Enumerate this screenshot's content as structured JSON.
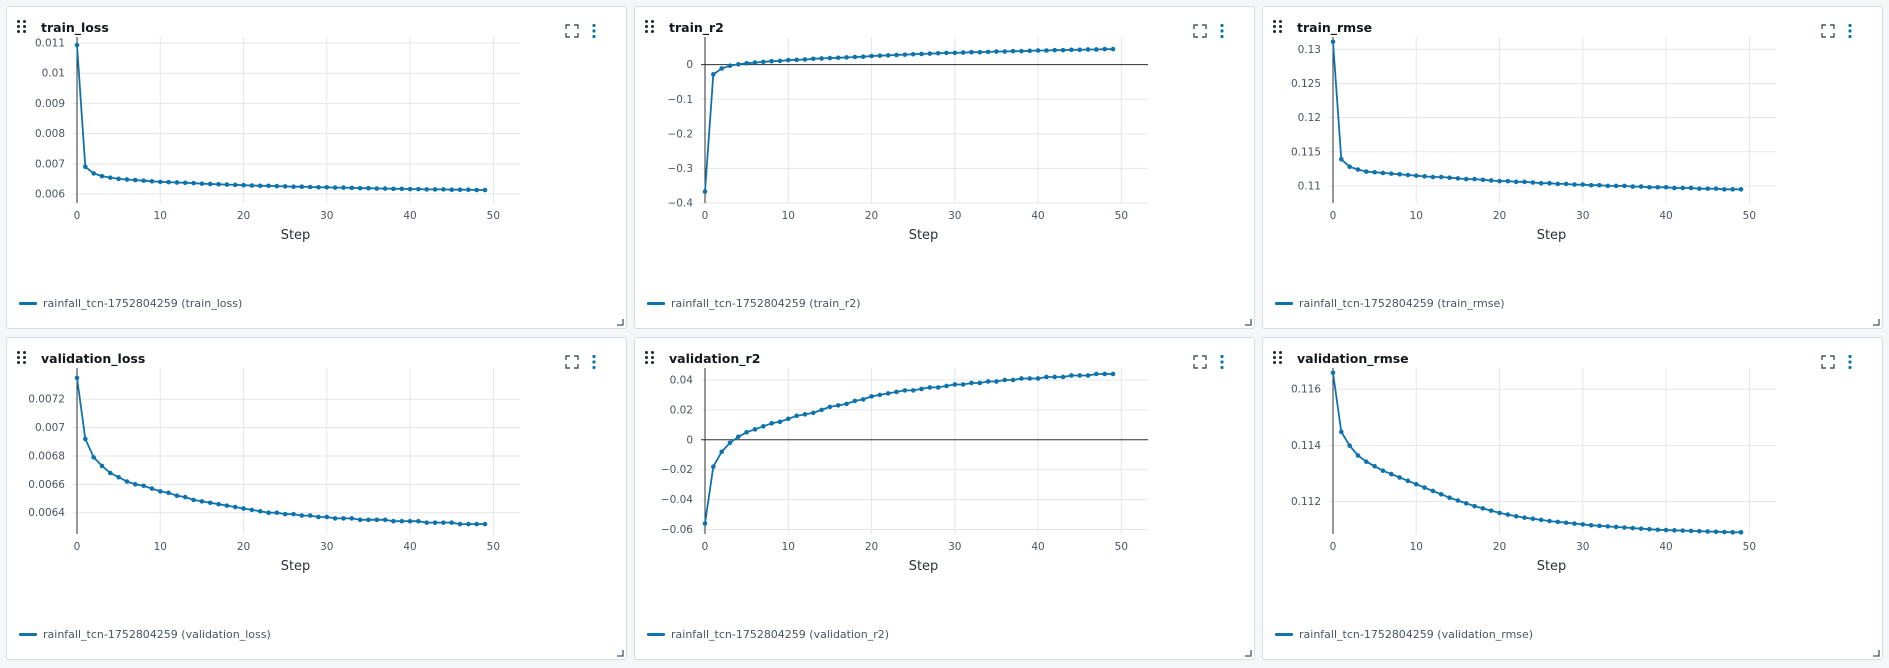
{
  "colors": {
    "series": "#0e73ad",
    "grid": "#e3e6ea",
    "zero_line": "#2b2f33",
    "text": "#4a5560"
  },
  "icons": {
    "drag": "drag-handle-icon",
    "expand": "fullscreen-icon",
    "menu": "kebab-menu-icon",
    "resize": "resize-handle-icon"
  },
  "chart_data": [
    {
      "type": "line",
      "title": "train_loss",
      "xlabel": "Step",
      "xlim": [
        0,
        52
      ],
      "ylim": [
        0.0057,
        0.0112
      ],
      "xticks": [
        0,
        10,
        20,
        30,
        40,
        50
      ],
      "xtick_labels": [
        "0",
        "10",
        "20",
        "30",
        "40",
        "50"
      ],
      "yticks": [
        0.006,
        0.007,
        0.008,
        0.009,
        0.01,
        0.011
      ],
      "ytick_labels": [
        "0.006",
        "0.007",
        "0.008",
        "0.009",
        "0.01",
        "0.011"
      ],
      "zero_line": false,
      "series": [
        {
          "name": "rainfall_tcn-1752804259 (train_loss)",
          "y": [
            0.01093,
            0.0069,
            0.00668,
            0.00659,
            0.00654,
            0.0065,
            0.00648,
            0.00646,
            0.00644,
            0.00642,
            0.0064,
            0.00639,
            0.00638,
            0.00637,
            0.00636,
            0.00634,
            0.00633,
            0.00632,
            0.00631,
            0.0063,
            0.00629,
            0.00628,
            0.00627,
            0.00627,
            0.00626,
            0.00625,
            0.00624,
            0.00624,
            0.00623,
            0.00622,
            0.00622,
            0.00621,
            0.00621,
            0.0062,
            0.00619,
            0.00619,
            0.00618,
            0.00618,
            0.00617,
            0.00617,
            0.00616,
            0.00616,
            0.00615,
            0.00615,
            0.00615,
            0.00614,
            0.00614,
            0.00614,
            0.00613,
            0.00613
          ]
        }
      ]
    },
    {
      "type": "line",
      "title": "train_r2",
      "xlabel": "Step",
      "xlim": [
        0,
        52
      ],
      "ylim": [
        -0.4,
        0.08
      ],
      "xticks": [
        0,
        10,
        20,
        30,
        40,
        50
      ],
      "xtick_labels": [
        "0",
        "10",
        "20",
        "30",
        "40",
        "50"
      ],
      "yticks": [
        -0.4,
        -0.3,
        -0.2,
        -0.1,
        0
      ],
      "ytick_labels": [
        "−0.4",
        "−0.3",
        "−0.2",
        "−0.1",
        "0"
      ],
      "zero_line": true,
      "series": [
        {
          "name": "rainfall_tcn-1752804259 (train_r2)",
          "y": [
            -0.367,
            -0.028,
            -0.011,
            -0.003,
            0.001,
            0.004,
            0.006,
            0.008,
            0.01,
            0.011,
            0.013,
            0.014,
            0.015,
            0.017,
            0.018,
            0.019,
            0.02,
            0.021,
            0.022,
            0.023,
            0.025,
            0.026,
            0.027,
            0.028,
            0.029,
            0.03,
            0.031,
            0.032,
            0.033,
            0.034,
            0.034,
            0.035,
            0.036,
            0.036,
            0.037,
            0.038,
            0.038,
            0.039,
            0.039,
            0.04,
            0.041,
            0.041,
            0.042,
            0.042,
            0.043,
            0.043,
            0.044,
            0.044,
            0.045,
            0.045
          ]
        }
      ]
    },
    {
      "type": "line",
      "title": "train_rmse",
      "xlabel": "Step",
      "xlim": [
        0,
        52
      ],
      "ylim": [
        0.1075,
        0.1318
      ],
      "xticks": [
        0,
        10,
        20,
        30,
        40,
        50
      ],
      "xtick_labels": [
        "0",
        "10",
        "20",
        "30",
        "40",
        "50"
      ],
      "yticks": [
        0.11,
        0.115,
        0.12,
        0.125,
        0.13
      ],
      "ytick_labels": [
        "0.11",
        "0.115",
        "0.12",
        "0.125",
        "0.13"
      ],
      "zero_line": false,
      "series": [
        {
          "name": "rainfall_tcn-1752804259 (train_rmse)",
          "y": [
            0.1311,
            0.1139,
            0.1128,
            0.1124,
            0.1121,
            0.112,
            0.1119,
            0.1118,
            0.1117,
            0.1116,
            0.1115,
            0.1114,
            0.1113,
            0.1113,
            0.1112,
            0.1111,
            0.111,
            0.111,
            0.1109,
            0.1108,
            0.1107,
            0.1107,
            0.1106,
            0.1106,
            0.1105,
            0.1104,
            0.1104,
            0.1103,
            0.1103,
            0.1102,
            0.1102,
            0.1101,
            0.1101,
            0.11,
            0.11,
            0.11,
            0.1099,
            0.1099,
            0.1098,
            0.1098,
            0.1098,
            0.1097,
            0.1097,
            0.1097,
            0.1096,
            0.1096,
            0.1096,
            0.1095,
            0.1095,
            0.1095
          ]
        }
      ]
    },
    {
      "type": "line",
      "title": "validation_loss",
      "xlabel": "Step",
      "xlim": [
        0,
        52
      ],
      "ylim": [
        0.00625,
        0.00742
      ],
      "xticks": [
        0,
        10,
        20,
        30,
        40,
        50
      ],
      "xtick_labels": [
        "0",
        "10",
        "20",
        "30",
        "40",
        "50"
      ],
      "yticks": [
        0.0064,
        0.0066,
        0.0068,
        0.007,
        0.0072
      ],
      "ytick_labels": [
        "0.0064",
        "0.0066",
        "0.0068",
        "0.007",
        "0.0072"
      ],
      "zero_line": false,
      "series": [
        {
          "name": "rainfall_tcn-1752804259 (validation_loss)",
          "y": [
            0.00735,
            0.00692,
            0.00679,
            0.00673,
            0.00668,
            0.00665,
            0.00662,
            0.0066,
            0.00659,
            0.00657,
            0.00655,
            0.00654,
            0.00652,
            0.00651,
            0.00649,
            0.00648,
            0.00647,
            0.00646,
            0.00645,
            0.00644,
            0.00643,
            0.00642,
            0.00641,
            0.0064,
            0.0064,
            0.00639,
            0.00639,
            0.00638,
            0.00638,
            0.00637,
            0.00637,
            0.00636,
            0.00636,
            0.00636,
            0.00635,
            0.00635,
            0.00635,
            0.00635,
            0.00634,
            0.00634,
            0.00634,
            0.00634,
            0.00633,
            0.00633,
            0.00633,
            0.00633,
            0.00632,
            0.00632,
            0.00632,
            0.00632
          ]
        }
      ]
    },
    {
      "type": "line",
      "title": "validation_r2",
      "xlabel": "Step",
      "xlim": [
        0,
        52
      ],
      "ylim": [
        -0.063,
        0.048
      ],
      "xticks": [
        0,
        10,
        20,
        30,
        40,
        50
      ],
      "xtick_labels": [
        "0",
        "10",
        "20",
        "30",
        "40",
        "50"
      ],
      "yticks": [
        -0.06,
        -0.04,
        -0.02,
        0,
        0.02,
        0.04
      ],
      "ytick_labels": [
        "−0.06",
        "−0.04",
        "−0.02",
        "0",
        "0.02",
        "0.04"
      ],
      "zero_line": true,
      "series": [
        {
          "name": "rainfall_tcn-1752804259 (validation_r2)",
          "y": [
            -0.056,
            -0.018,
            -0.008,
            -0.002,
            0.002,
            0.005,
            0.007,
            0.009,
            0.011,
            0.012,
            0.014,
            0.016,
            0.017,
            0.018,
            0.02,
            0.022,
            0.023,
            0.024,
            0.026,
            0.027,
            0.029,
            0.03,
            0.031,
            0.032,
            0.033,
            0.033,
            0.034,
            0.035,
            0.035,
            0.036,
            0.037,
            0.037,
            0.038,
            0.038,
            0.039,
            0.039,
            0.04,
            0.04,
            0.041,
            0.041,
            0.041,
            0.042,
            0.042,
            0.042,
            0.043,
            0.043,
            0.043,
            0.044,
            0.044,
            0.044
          ]
        }
      ]
    },
    {
      "type": "line",
      "title": "validation_rmse",
      "xlabel": "Step",
      "xlim": [
        0,
        52
      ],
      "ylim": [
        0.11085,
        0.11675
      ],
      "xticks": [
        0,
        10,
        20,
        30,
        40,
        50
      ],
      "xtick_labels": [
        "0",
        "10",
        "20",
        "30",
        "40",
        "50"
      ],
      "yticks": [
        0.112,
        0.114,
        0.116
      ],
      "ytick_labels": [
        "0.112",
        "0.114",
        "0.116"
      ],
      "zero_line": false,
      "series": [
        {
          "name": "rainfall_tcn-1752804259 (validation_rmse)",
          "y": [
            0.11658,
            0.11448,
            0.11399,
            0.11364,
            0.11342,
            0.11326,
            0.1131,
            0.11298,
            0.11286,
            0.11274,
            0.11262,
            0.1125,
            0.11238,
            0.11226,
            0.11214,
            0.11204,
            0.11194,
            0.11184,
            0.11176,
            0.11168,
            0.1116,
            0.11154,
            0.11148,
            0.11143,
            0.11139,
            0.11135,
            0.11131,
            0.11128,
            0.11125,
            0.11122,
            0.11119,
            0.11116,
            0.11114,
            0.11112,
            0.1111,
            0.11108,
            0.11106,
            0.11104,
            0.11102,
            0.111,
            0.11099,
            0.11098,
            0.11097,
            0.11096,
            0.11095,
            0.11094,
            0.11093,
            0.11092,
            0.11091,
            0.11091
          ]
        }
      ]
    }
  ]
}
